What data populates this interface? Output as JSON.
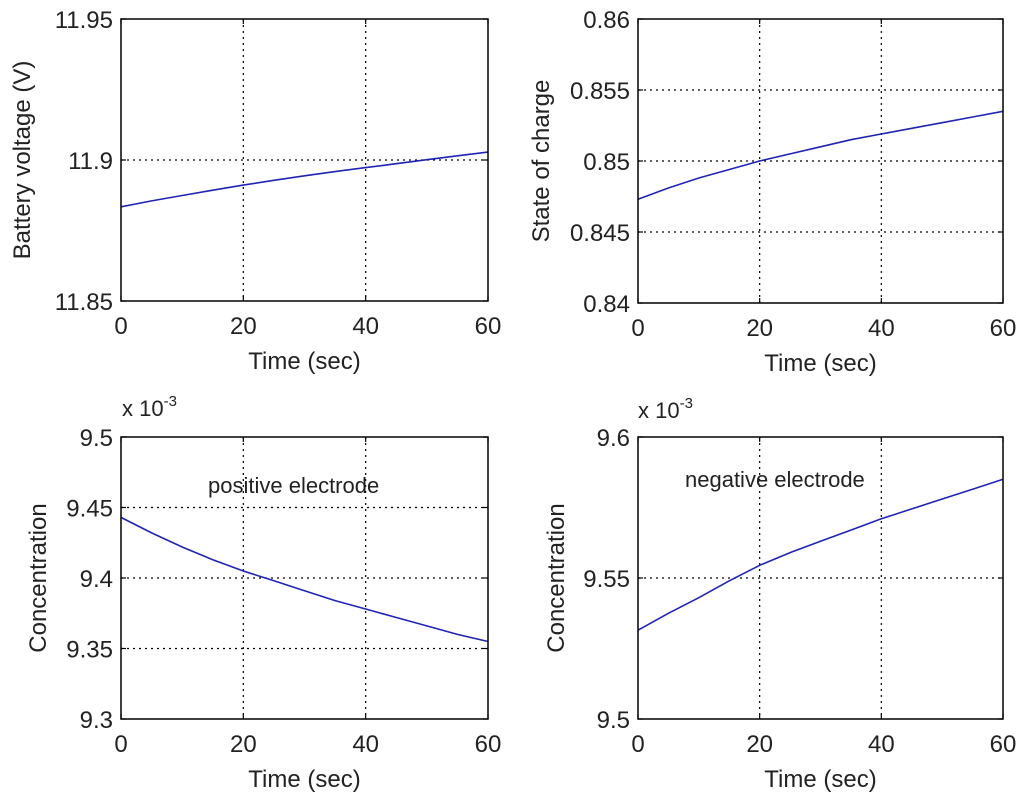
{
  "colors": {
    "series": "#1f24b4",
    "axes": "#000000",
    "grid": "#000000",
    "background": "#ffffff"
  },
  "chart_data": [
    {
      "type": "line",
      "title": "",
      "xlabel": "Time (sec)",
      "ylabel": "Battery voltage (V)",
      "xlim": [
        0,
        60
      ],
      "ylim": [
        11.85,
        11.95
      ],
      "xticks": [
        "0",
        "20",
        "40",
        "60"
      ],
      "yticks": [
        "11.85",
        "11.9",
        "11.95"
      ],
      "grid": true,
      "series": [
        {
          "name": "Battery voltage",
          "x": [
            0,
            5,
            10,
            15,
            20,
            25,
            30,
            35,
            40,
            45,
            50,
            55,
            60
          ],
          "y": [
            11.8834,
            11.8855,
            11.8874,
            11.8893,
            11.8911,
            11.8928,
            11.8944,
            11.8959,
            11.8973,
            11.8987,
            11.9001,
            11.9015,
            11.9028
          ]
        }
      ]
    },
    {
      "type": "line",
      "title": "",
      "xlabel": "Time (sec)",
      "ylabel": "State of charge",
      "xlim": [
        0,
        60
      ],
      "ylim": [
        0.84,
        0.86
      ],
      "xticks": [
        "0",
        "20",
        "40",
        "60"
      ],
      "yticks": [
        "0.84",
        "0.845",
        "0.85",
        "0.855",
        "0.86"
      ],
      "grid": true,
      "series": [
        {
          "name": "State of charge",
          "x": [
            0,
            5,
            10,
            15,
            20,
            25,
            30,
            35,
            40,
            45,
            50,
            55,
            60
          ],
          "y": [
            0.8473,
            0.8481,
            0.8488,
            0.8494,
            0.85,
            0.8505,
            0.851,
            0.8515,
            0.8519,
            0.8523,
            0.8527,
            0.8531,
            0.8535
          ]
        }
      ]
    },
    {
      "type": "line",
      "title": "",
      "xlabel": "Time (sec)",
      "ylabel": "Concentration",
      "xlim": [
        0,
        60
      ],
      "ylim": [
        9.3,
        9.5
      ],
      "xticks": [
        "0",
        "20",
        "40",
        "60"
      ],
      "yticks": [
        "9.3",
        "9.35",
        "9.4",
        "9.45",
        "9.5"
      ],
      "y_exponent": {
        "base": "x 10",
        "power": "-3"
      },
      "annotation": "positive electrode",
      "grid": true,
      "series": [
        {
          "name": "positive electrode",
          "x": [
            0,
            5,
            10,
            15,
            20,
            25,
            30,
            35,
            40,
            45,
            50,
            55,
            60
          ],
          "y": [
            9.443,
            9.432,
            9.422,
            9.413,
            9.405,
            9.398,
            9.391,
            9.384,
            9.378,
            9.372,
            9.366,
            9.36,
            9.355
          ]
        }
      ]
    },
    {
      "type": "line",
      "title": "",
      "xlabel": "Time (sec)",
      "ylabel": "Concentration",
      "xlim": [
        0,
        60
      ],
      "ylim": [
        9.5,
        9.6
      ],
      "xticks": [
        "0",
        "20",
        "40",
        "60"
      ],
      "yticks": [
        "9.5",
        "9.55",
        "9.6"
      ],
      "y_exponent": {
        "base": "x 10",
        "power": "-3"
      },
      "annotation": "negative electrode",
      "grid": true,
      "series": [
        {
          "name": "negative electrode",
          "x": [
            0,
            5,
            10,
            15,
            20,
            25,
            30,
            35,
            40,
            45,
            50,
            55,
            60
          ],
          "y": [
            9.5315,
            9.5375,
            9.543,
            9.549,
            9.5545,
            9.559,
            9.563,
            9.567,
            9.571,
            9.5745,
            9.578,
            9.5815,
            9.585
          ]
        }
      ]
    }
  ]
}
